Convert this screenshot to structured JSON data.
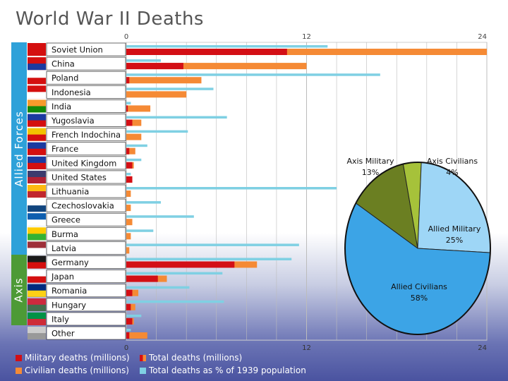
{
  "title": "World War II Deaths",
  "groups": [
    {
      "label": "Allied Forces",
      "color": "#2ea1d9"
    },
    {
      "label": "Axis",
      "color": "#4d9a36"
    }
  ],
  "colors": {
    "military": "#d30f15",
    "civilian": "#f58a35",
    "percent": "#7fd0e3",
    "grid": "#bcbcbc"
  },
  "chart_data": [
    {
      "type": "bar",
      "title": "World War II Deaths",
      "x_ticks": [
        "0",
        "12",
        "24"
      ],
      "xlim": [
        0,
        24
      ],
      "categories": [
        "Soviet Union",
        "China",
        "Poland",
        "Indonesia",
        "India",
        "Yugoslavia",
        "French Indochina",
        "France",
        "United Kingdom",
        "United States",
        "Lithuania",
        "Czechoslovakia",
        "Greece",
        "Burma",
        "Latvia",
        "Germany",
        "Japan",
        "Romania",
        "Hungary",
        "Italy",
        "Other"
      ],
      "series": [
        {
          "name": "Military deaths (millions)",
          "values": [
            10.7,
            3.8,
            0.2,
            0,
            0.1,
            0.4,
            0,
            0.2,
            0.4,
            0.4,
            0,
            0,
            0,
            0,
            0,
            7.2,
            2.1,
            0.4,
            0.3,
            0.4,
            0.2
          ]
        },
        {
          "name": "Civilian deaths (millions)",
          "values": [
            13.3,
            8.2,
            4.8,
            4,
            1.5,
            0.6,
            1,
            0.4,
            0.1,
            0,
            0.3,
            0.3,
            0.4,
            0.3,
            0.2,
            1.5,
            0.6,
            0.4,
            0.3,
            0.1,
            1.2
          ]
        },
        {
          "name": "Total deaths as % of 1939 population",
          "values": [
            13.4,
            2.3,
            16.9,
            5.8,
            0.3,
            6.7,
            4.1,
            1.4,
            1,
            0.3,
            14,
            2.3,
            4.5,
            1.8,
            11.5,
            11,
            6.4,
            4.2,
            6.5,
            1,
            0.3
          ]
        }
      ]
    },
    {
      "type": "pie",
      "slices": [
        {
          "name": "Axis Military",
          "value": 13,
          "label": "13%",
          "color": "#6b7f22"
        },
        {
          "name": "Axis Civilians",
          "value": 4,
          "label": "4%",
          "color": "#a6c23a"
        },
        {
          "name": "Allied Military",
          "value": 25,
          "label": "25%",
          "color": "#9ed6f6"
        },
        {
          "name": "Allied Civilians",
          "value": 58,
          "label": "58%",
          "color": "#3ca4e6"
        }
      ]
    }
  ],
  "legend": [
    {
      "label": "Military deaths (millions)",
      "color": "#d30f15"
    },
    {
      "label": "Total deaths (millions)",
      "color": "#f58a35",
      "color2": "#d30f15"
    },
    {
      "label": "Civilian deaths (millions)",
      "color": "#f58a35"
    },
    {
      "label": "Total deaths as % of 1939 population",
      "color": "#7fd0e3"
    }
  ]
}
